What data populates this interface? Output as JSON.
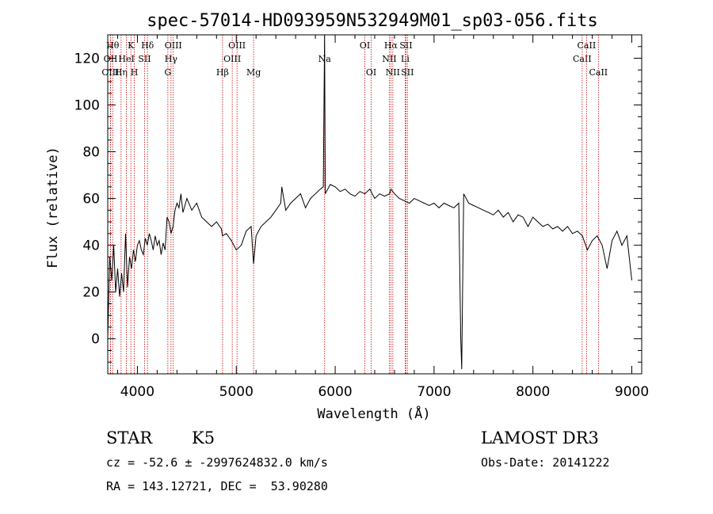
{
  "chart_data": {
    "type": "line",
    "title": "spec-57014-HD093959N532949M01_sp03-056.fits",
    "xlabel": "Wavelength (Å)",
    "ylabel": "Flux (relative)",
    "xlim": [
      3700,
      9100
    ],
    "ylim": [
      -15,
      130
    ],
    "xticks": [
      4000,
      5000,
      6000,
      7000,
      8000,
      9000
    ],
    "yticks": [
      0,
      20,
      40,
      60,
      80,
      100,
      120
    ],
    "grid": false,
    "colors": {
      "spectrum": "#000000",
      "lines": "#cc0000",
      "axes": "#000000"
    },
    "series": [
      {
        "x": [
          3700,
          3720,
          3740,
          3760,
          3780,
          3800,
          3820,
          3840,
          3860,
          3880,
          3900,
          3920,
          3940,
          3960,
          3980,
          4000,
          4020,
          4040,
          4060,
          4080,
          4100,
          4120,
          4140,
          4160,
          4180,
          4200,
          4220,
          4240,
          4260,
          4280,
          4300,
          4320,
          4340,
          4360,
          4380,
          4400,
          4420,
          4440,
          4460,
          4480,
          4500,
          4550,
          4600,
          4650,
          4700,
          4750,
          4800,
          4850,
          4860,
          4900,
          4950,
          5000,
          5050,
          5100,
          5150,
          5175,
          5200,
          5250,
          5300,
          5350,
          5400,
          5450,
          5460,
          5500,
          5550,
          5600,
          5650,
          5700,
          5750,
          5800,
          5850,
          5880,
          5893,
          5900,
          5950,
          6000,
          6050,
          6100,
          6150,
          6200,
          6250,
          6300,
          6350,
          6400,
          6450,
          6500,
          6550,
          6563,
          6600,
          6650,
          6700,
          6750,
          6800,
          6850,
          6900,
          6950,
          7000,
          7050,
          7100,
          7150,
          7200,
          7250,
          7270,
          7280,
          7300,
          7350,
          7400,
          7450,
          7500,
          7550,
          7600,
          7650,
          7700,
          7750,
          7800,
          7850,
          7900,
          7950,
          8000,
          8050,
          8100,
          8150,
          8200,
          8250,
          8300,
          8350,
          8400,
          8450,
          8500,
          8550,
          8600,
          8650,
          8700,
          8750,
          8800,
          8850,
          8900,
          8950,
          9000
        ],
        "y": [
          0,
          35,
          25,
          40,
          20,
          30,
          18,
          28,
          20,
          45,
          22,
          35,
          30,
          38,
          33,
          40,
          42,
          38,
          36,
          43,
          40,
          45,
          42,
          38,
          44,
          40,
          42,
          36,
          41,
          38,
          52,
          50,
          45,
          48,
          55,
          58,
          56,
          62,
          54,
          57,
          60,
          55,
          58,
          52,
          50,
          48,
          50,
          47,
          44,
          45,
          42,
          38,
          40,
          46,
          48,
          32,
          44,
          48,
          50,
          52,
          55,
          58,
          65,
          55,
          58,
          60,
          62,
          56,
          60,
          62,
          64,
          65,
          130,
          62,
          66,
          65,
          63,
          64,
          62,
          61,
          63,
          62,
          64,
          60,
          62,
          61,
          62,
          64,
          62,
          60,
          59,
          58,
          60,
          59,
          58,
          57,
          58,
          56,
          58,
          57,
          56,
          58,
          0,
          -13,
          62,
          58,
          57,
          56,
          55,
          54,
          53,
          55,
          52,
          54,
          50,
          53,
          52,
          48,
          52,
          50,
          48,
          49,
          47,
          48,
          46,
          48,
          45,
          46,
          44,
          38,
          42,
          44,
          40,
          30,
          42,
          46,
          40,
          44,
          25
        ]
      }
    ],
    "line_markers": [
      {
        "wave": 3750,
        "label": "Hθ",
        "row": 0
      },
      {
        "wave": 3728,
        "label": "OII",
        "row": 1
      },
      {
        "wave": 3727,
        "label": "OIII",
        "row": 2
      },
      {
        "wave": 3835,
        "label": "Hη",
        "row": 2
      },
      {
        "wave": 3889,
        "label": "HeI",
        "row": 1
      },
      {
        "wave": 3934,
        "label": "K",
        "row": 0
      },
      {
        "wave": 3969,
        "label": "H",
        "row": 2
      },
      {
        "wave": 4072,
        "label": "SII",
        "row": 1
      },
      {
        "wave": 4102,
        "label": "Hδ",
        "row": 0
      },
      {
        "wave": 4308,
        "label": "G",
        "row": 2
      },
      {
        "wave": 4340,
        "label": "Hγ",
        "row": 1
      },
      {
        "wave": 4363,
        "label": "OIII",
        "row": 0
      },
      {
        "wave": 4861,
        "label": "Hβ",
        "row": 2
      },
      {
        "wave": 4959,
        "label": "OIII",
        "row": 1
      },
      {
        "wave": 5007,
        "label": "OIII",
        "row": 0
      },
      {
        "wave": 5175,
        "label": "Mg",
        "row": 2
      },
      {
        "wave": 5893,
        "label": "Na",
        "row": 1
      },
      {
        "wave": 6300,
        "label": "OI",
        "row": 0
      },
      {
        "wave": 6364,
        "label": "OI",
        "row": 2
      },
      {
        "wave": 6548,
        "label": "NII",
        "row": 1
      },
      {
        "wave": 6563,
        "label": "Hα",
        "row": 0
      },
      {
        "wave": 6583,
        "label": "NII",
        "row": 2
      },
      {
        "wave": 6708,
        "label": "Li",
        "row": 1
      },
      {
        "wave": 6716,
        "label": "SII",
        "row": 0
      },
      {
        "wave": 6731,
        "label": "SII",
        "row": 2
      },
      {
        "wave": 8498,
        "label": "CaII",
        "row": 1
      },
      {
        "wave": 8542,
        "label": "CaII",
        "row": 0
      },
      {
        "wave": 8662,
        "label": "CaII",
        "row": 2
      }
    ]
  },
  "info": {
    "object_class": "STAR",
    "subclass": "K5",
    "survey": "LAMOST DR3",
    "redshift_line": "cz = -52.6 ± -2997624832.0 km/s",
    "obs_date": "Obs-Date: 20141222",
    "coords": "RA = 143.12721, DEC =  53.90280"
  }
}
